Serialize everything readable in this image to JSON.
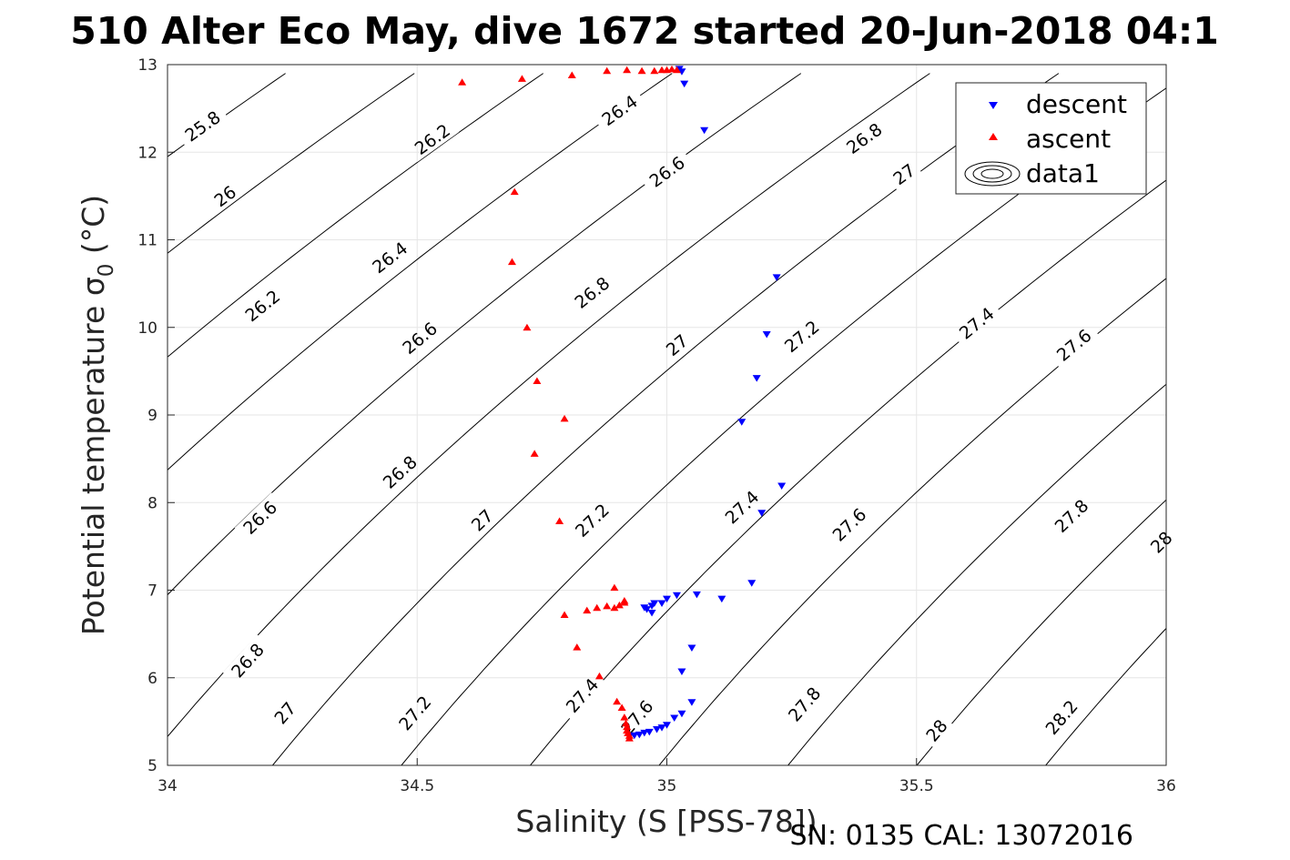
{
  "chart_data": {
    "type": "scatter",
    "title": "510 Alter Eco May, dive 1672 started 20-Jun-2018 04:1",
    "xlabel": "Salinity (S [PSS-78])",
    "ylabel_main": "Potential temperature σ",
    "ylabel_sub": "0",
    "ylabel_unit": " (°C)",
    "footer": "SN: 0135  CAL: 13072016",
    "xlim": [
      34,
      36
    ],
    "ylim": [
      5,
      13
    ],
    "xticks": [
      "34",
      "34.5",
      "35",
      "35.5",
      "36"
    ],
    "yticks": [
      "5",
      "6",
      "7",
      "8",
      "9",
      "10",
      "11",
      "12",
      "13"
    ],
    "grid": true,
    "legend_position": "top-right",
    "legend": [
      "descent",
      "ascent",
      "data1"
    ],
    "colors": {
      "descent": "#0000ff",
      "ascent": "#ff0000",
      "contour": "#000000"
    },
    "series": [
      {
        "name": "descent",
        "marker": "triangle-down",
        "points": [
          [
            35.03,
            12.92
          ],
          [
            35.025,
            12.95
          ],
          [
            35.035,
            12.78
          ],
          [
            35.075,
            12.25
          ],
          [
            35.22,
            10.57
          ],
          [
            35.2,
            9.92
          ],
          [
            35.18,
            9.42
          ],
          [
            35.15,
            8.92
          ],
          [
            35.23,
            8.19
          ],
          [
            35.19,
            7.88
          ],
          [
            35.17,
            7.08
          ],
          [
            35.11,
            6.9
          ],
          [
            35.06,
            6.95
          ],
          [
            35.02,
            6.94
          ],
          [
            35.0,
            6.9
          ],
          [
            34.99,
            6.85
          ],
          [
            34.975,
            6.85
          ],
          [
            34.97,
            6.82
          ],
          [
            34.96,
            6.78
          ],
          [
            34.97,
            6.74
          ],
          [
            34.955,
            6.8
          ],
          [
            35.05,
            6.34
          ],
          [
            35.03,
            6.07
          ],
          [
            35.05,
            5.72
          ],
          [
            35.03,
            5.59
          ],
          [
            35.015,
            5.54
          ],
          [
            35.0,
            5.46
          ],
          [
            34.99,
            5.43
          ],
          [
            34.98,
            5.41
          ],
          [
            34.965,
            5.38
          ],
          [
            34.955,
            5.37
          ],
          [
            34.945,
            5.35
          ],
          [
            34.935,
            5.34
          ],
          [
            34.925,
            5.33
          ]
        ]
      },
      {
        "name": "ascent",
        "marker": "triangle-up",
        "points": [
          [
            34.59,
            12.8
          ],
          [
            34.71,
            12.84
          ],
          [
            34.81,
            12.88
          ],
          [
            34.88,
            12.93
          ],
          [
            34.92,
            12.94
          ],
          [
            34.95,
            12.93
          ],
          [
            34.975,
            12.93
          ],
          [
            34.99,
            12.94
          ],
          [
            35.0,
            12.94
          ],
          [
            35.01,
            12.95
          ],
          [
            35.02,
            12.94
          ],
          [
            34.695,
            11.55
          ],
          [
            34.69,
            10.75
          ],
          [
            34.72,
            10.0
          ],
          [
            34.74,
            9.39
          ],
          [
            34.795,
            8.96
          ],
          [
            34.735,
            8.56
          ],
          [
            34.785,
            7.79
          ],
          [
            34.895,
            7.03
          ],
          [
            34.915,
            6.88
          ],
          [
            34.905,
            6.83
          ],
          [
            34.895,
            6.8
          ],
          [
            34.88,
            6.82
          ],
          [
            34.86,
            6.8
          ],
          [
            34.84,
            6.77
          ],
          [
            34.795,
            6.72
          ],
          [
            34.915,
            6.86
          ],
          [
            34.82,
            6.35
          ],
          [
            34.865,
            6.02
          ],
          [
            34.9,
            5.73
          ],
          [
            34.91,
            5.66
          ],
          [
            34.915,
            5.55
          ],
          [
            34.918,
            5.48
          ],
          [
            34.92,
            5.44
          ],
          [
            34.92,
            5.4
          ],
          [
            34.922,
            5.37
          ],
          [
            34.925,
            5.34
          ],
          [
            34.925,
            5.31
          ]
        ]
      }
    ],
    "contours": {
      "name": "data1",
      "levels": [
        {
          "v": 25.8,
          "label": "25.8",
          "ls": [
            [
              34.07,
              12.3
            ]
          ]
        },
        {
          "v": 26,
          "label": "26",
          "ls": [
            [
              34.115,
              11.5
            ]
          ]
        },
        {
          "v": 26.2,
          "label": "26.2",
          "ls": [
            [
              34.19,
              10.25
            ],
            [
              34.53,
              12.15
            ]
          ]
        },
        {
          "v": 26.4,
          "label": "26.4",
          "ls": [
            [
              34.445,
              10.8
            ],
            [
              34.905,
              12.48
            ]
          ]
        },
        {
          "v": 26.6,
          "label": "26.6",
          "ls": [
            [
              34.185,
              7.83
            ],
            [
              34.505,
              9.88
            ],
            [
              35.0,
              11.78
            ]
          ]
        },
        {
          "v": 26.8,
          "label": "26.8",
          "ls": [
            [
              34.16,
              6.2
            ],
            [
              34.465,
              8.35
            ],
            [
              34.85,
              10.4
            ],
            [
              35.395,
              12.16
            ]
          ]
        },
        {
          "v": 27,
          "label": "27",
          "ls": [
            [
              34.235,
              5.6
            ],
            [
              34.63,
              7.8
            ],
            [
              35.02,
              9.8
            ],
            [
              35.475,
              11.75
            ]
          ]
        },
        {
          "v": 27.2,
          "label": "27.2",
          "ls": [
            [
              34.495,
              5.6
            ],
            [
              34.85,
              7.8
            ],
            [
              35.27,
              9.9
            ]
          ]
        },
        {
          "v": 27.4,
          "label": "27.4",
          "ls": [
            [
              34.83,
              5.8
            ],
            [
              35.15,
              7.95
            ],
            [
              35.62,
              10.05
            ]
          ]
        },
        {
          "v": 27.6,
          "label": "27.6",
          "ls": [
            [
              34.94,
              5.55
            ],
            [
              35.365,
              7.75
            ],
            [
              35.815,
              9.8
            ]
          ]
        },
        {
          "v": 27.8,
          "label": "27.8",
          "ls": [
            [
              35.275,
              5.7
            ],
            [
              35.81,
              7.85
            ]
          ]
        },
        {
          "v": 28,
          "label": "28",
          "ls": [
            [
              35.54,
              5.4
            ],
            [
              35.99,
              7.55
            ]
          ]
        },
        {
          "v": 28.2,
          "label": "28.2",
          "ls": [
            [
              35.79,
              5.55
            ]
          ]
        },
        {
          "v": 28.4,
          "label": "",
          "ls": []
        }
      ]
    }
  }
}
